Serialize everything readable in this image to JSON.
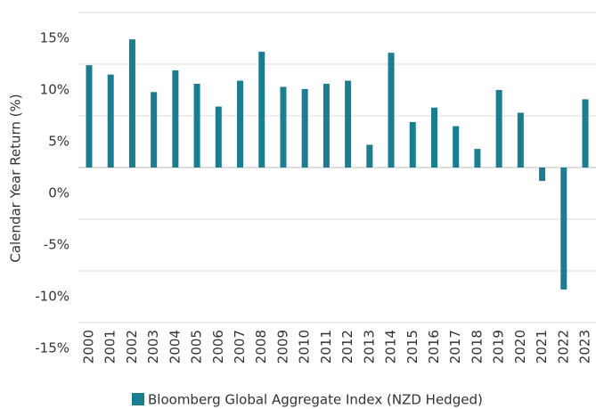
{
  "chart_data": {
    "type": "bar",
    "y_label": "Calendar Year Return (%)",
    "categories": [
      "2000",
      "2001",
      "2002",
      "2003",
      "2004",
      "2005",
      "2006",
      "2007",
      "2008",
      "2009",
      "2010",
      "2011",
      "2012",
      "2013",
      "2014",
      "2015",
      "2016",
      "2017",
      "2018",
      "2019",
      "2020",
      "2021",
      "2022",
      "2023"
    ],
    "series": [
      {
        "name": "Bloomberg Global Aggregate Index (NZD Hedged)",
        "color": "#1b7d90",
        "values": [
          9.9,
          9.0,
          12.4,
          7.3,
          9.4,
          8.1,
          5.9,
          8.4,
          11.2,
          7.8,
          7.6,
          8.1,
          8.4,
          2.2,
          11.1,
          4.4,
          5.8,
          4.0,
          1.8,
          7.5,
          5.3,
          -1.3,
          -11.8,
          6.6
        ]
      }
    ],
    "ylim": [
      -15,
      15
    ],
    "yticks": [
      {
        "value": 15,
        "label": "15%"
      },
      {
        "value": 10,
        "label": "10%"
      },
      {
        "value": 5,
        "label": "5%"
      },
      {
        "value": 0,
        "label": "0%"
      },
      {
        "value": -5,
        "label": "-5%"
      },
      {
        "value": -10,
        "label": "-10%"
      },
      {
        "value": -15,
        "label": "-15%"
      }
    ],
    "grid": true,
    "legend": "bottom"
  }
}
